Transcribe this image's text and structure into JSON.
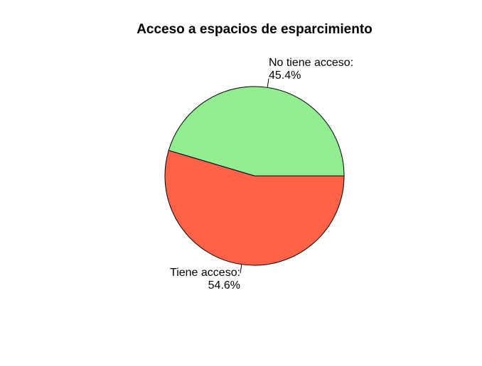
{
  "chart_data": {
    "type": "pie",
    "title": "Acceso a espacios de esparcimiento",
    "slices": [
      {
        "label_name": "No tiene acceso:",
        "label_pct": "45.4%",
        "value": 45.4,
        "color": "#90EE90"
      },
      {
        "label_name": "Tiene acceso:",
        "label_pct": "54.6%",
        "value": 54.6,
        "color": "#FF6347"
      }
    ],
    "start_angle_deg": 0,
    "direction": "counterclockwise",
    "border_color": "#000000"
  }
}
